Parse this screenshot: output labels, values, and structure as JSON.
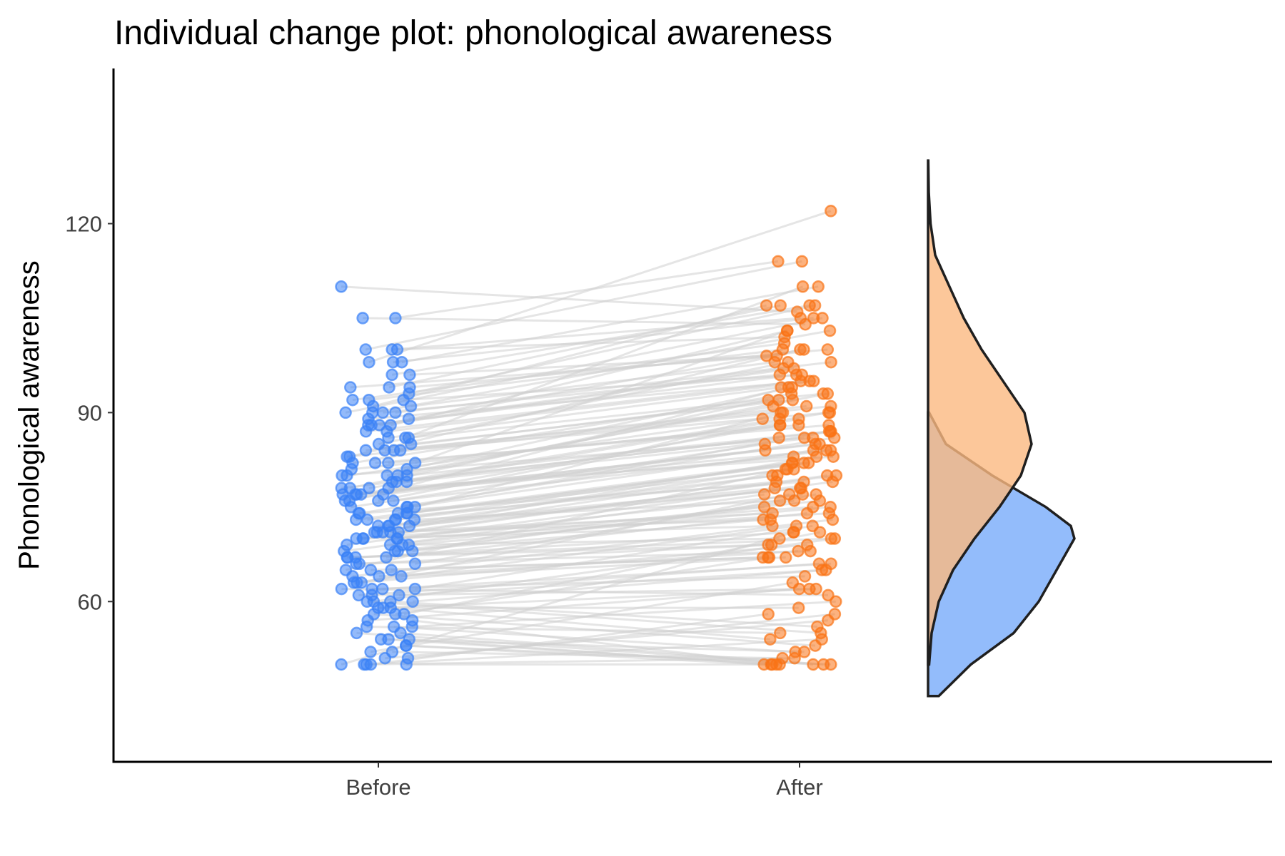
{
  "chart_data": {
    "type": "scatter",
    "title": "Individual change plot: phonological awareness",
    "xlabel": "",
    "ylabel": "Phonological awareness",
    "categories": [
      "Before",
      "After"
    ],
    "ylim": [
      35,
      145
    ],
    "yticks": [
      60,
      90,
      120
    ],
    "grid": false,
    "legend": "none",
    "colors": {
      "before": "#3b82f6",
      "after": "#f97316",
      "before_fill": "#8db8fb",
      "after_fill": "#fbb981",
      "line": "#cccccc"
    },
    "series": [
      {
        "name": "Before",
        "values": [
          110,
          105,
          105,
          100,
          100,
          100,
          98,
          98,
          98,
          96,
          96,
          94,
          94,
          94,
          93,
          92,
          92,
          92,
          91,
          91,
          90,
          90,
          90,
          90,
          89,
          89,
          88,
          88,
          88,
          88,
          87,
          87,
          86,
          86,
          86,
          85,
          85,
          84,
          84,
          84,
          84,
          83,
          83,
          82,
          82,
          82,
          82,
          81,
          81,
          80,
          80,
          80,
          80,
          80,
          79,
          79,
          79,
          78,
          78,
          78,
          78,
          77,
          77,
          77,
          77,
          77,
          76,
          76,
          76,
          76,
          75,
          75,
          75,
          75,
          74,
          74,
          74,
          74,
          74,
          73,
          73,
          73,
          73,
          73,
          72,
          72,
          72,
          72,
          71,
          71,
          71,
          71,
          71,
          70,
          70,
          70,
          70,
          70,
          69,
          69,
          69,
          69,
          68,
          68,
          68,
          68,
          67,
          67,
          67,
          67,
          66,
          66,
          66,
          65,
          65,
          65,
          64,
          64,
          64,
          63,
          63,
          63,
          62,
          62,
          62,
          62,
          61,
          61,
          61,
          60,
          60,
          60,
          60,
          59,
          59,
          59,
          58,
          58,
          58,
          57,
          57,
          56,
          56,
          56,
          55,
          55,
          54,
          54,
          54,
          53,
          53,
          52,
          52,
          51,
          51,
          50,
          50,
          50,
          50,
          50
        ]
      },
      {
        "name": "After",
        "values": [
          122,
          114,
          114,
          110,
          110,
          107,
          107,
          107,
          107,
          106,
          105,
          105,
          105,
          104,
          103,
          103,
          103,
          102,
          101,
          100,
          100,
          100,
          100,
          99,
          99,
          98,
          98,
          98,
          97,
          97,
          96,
          96,
          96,
          95,
          95,
          95,
          94,
          94,
          94,
          93,
          93,
          93,
          92,
          92,
          92,
          91,
          91,
          91,
          90,
          90,
          90,
          90,
          89,
          89,
          89,
          88,
          88,
          88,
          88,
          87,
          87,
          87,
          86,
          86,
          86,
          86,
          85,
          85,
          85,
          84,
          84,
          84,
          84,
          83,
          83,
          83,
          82,
          82,
          82,
          82,
          81,
          81,
          81,
          80,
          80,
          80,
          80,
          79,
          79,
          79,
          78,
          78,
          78,
          77,
          77,
          77,
          77,
          76,
          76,
          76,
          75,
          75,
          75,
          74,
          74,
          74,
          73,
          73,
          73,
          72,
          72,
          72,
          71,
          71,
          71,
          70,
          70,
          70,
          69,
          69,
          69,
          68,
          68,
          67,
          67,
          67,
          67,
          66,
          66,
          65,
          65,
          64,
          63,
          62,
          62,
          62,
          61,
          60,
          59,
          58,
          58,
          57,
          56,
          55,
          55,
          54,
          54,
          53,
          52,
          52,
          51,
          51,
          50,
          50,
          50,
          50,
          50,
          50,
          50,
          50
        ]
      }
    ],
    "density": {
      "before": {
        "y": [
          45,
          50,
          55,
          60,
          65,
          70,
          72,
          75,
          80,
          85,
          90
        ],
        "density": [
          0.003,
          0.012,
          0.024,
          0.031,
          0.036,
          0.041,
          0.04,
          0.033,
          0.018,
          0.005,
          0.0003
        ]
      },
      "after": {
        "y": [
          50,
          55,
          60,
          65,
          70,
          75,
          80,
          85,
          90,
          95,
          100,
          105,
          110,
          115,
          120,
          125,
          130
        ],
        "density": [
          0.0003,
          0.001,
          0.003,
          0.007,
          0.013,
          0.02,
          0.026,
          0.029,
          0.027,
          0.021,
          0.015,
          0.01,
          0.006,
          0.002,
          0.0007,
          0.0002,
          5e-05
        ]
      }
    }
  }
}
